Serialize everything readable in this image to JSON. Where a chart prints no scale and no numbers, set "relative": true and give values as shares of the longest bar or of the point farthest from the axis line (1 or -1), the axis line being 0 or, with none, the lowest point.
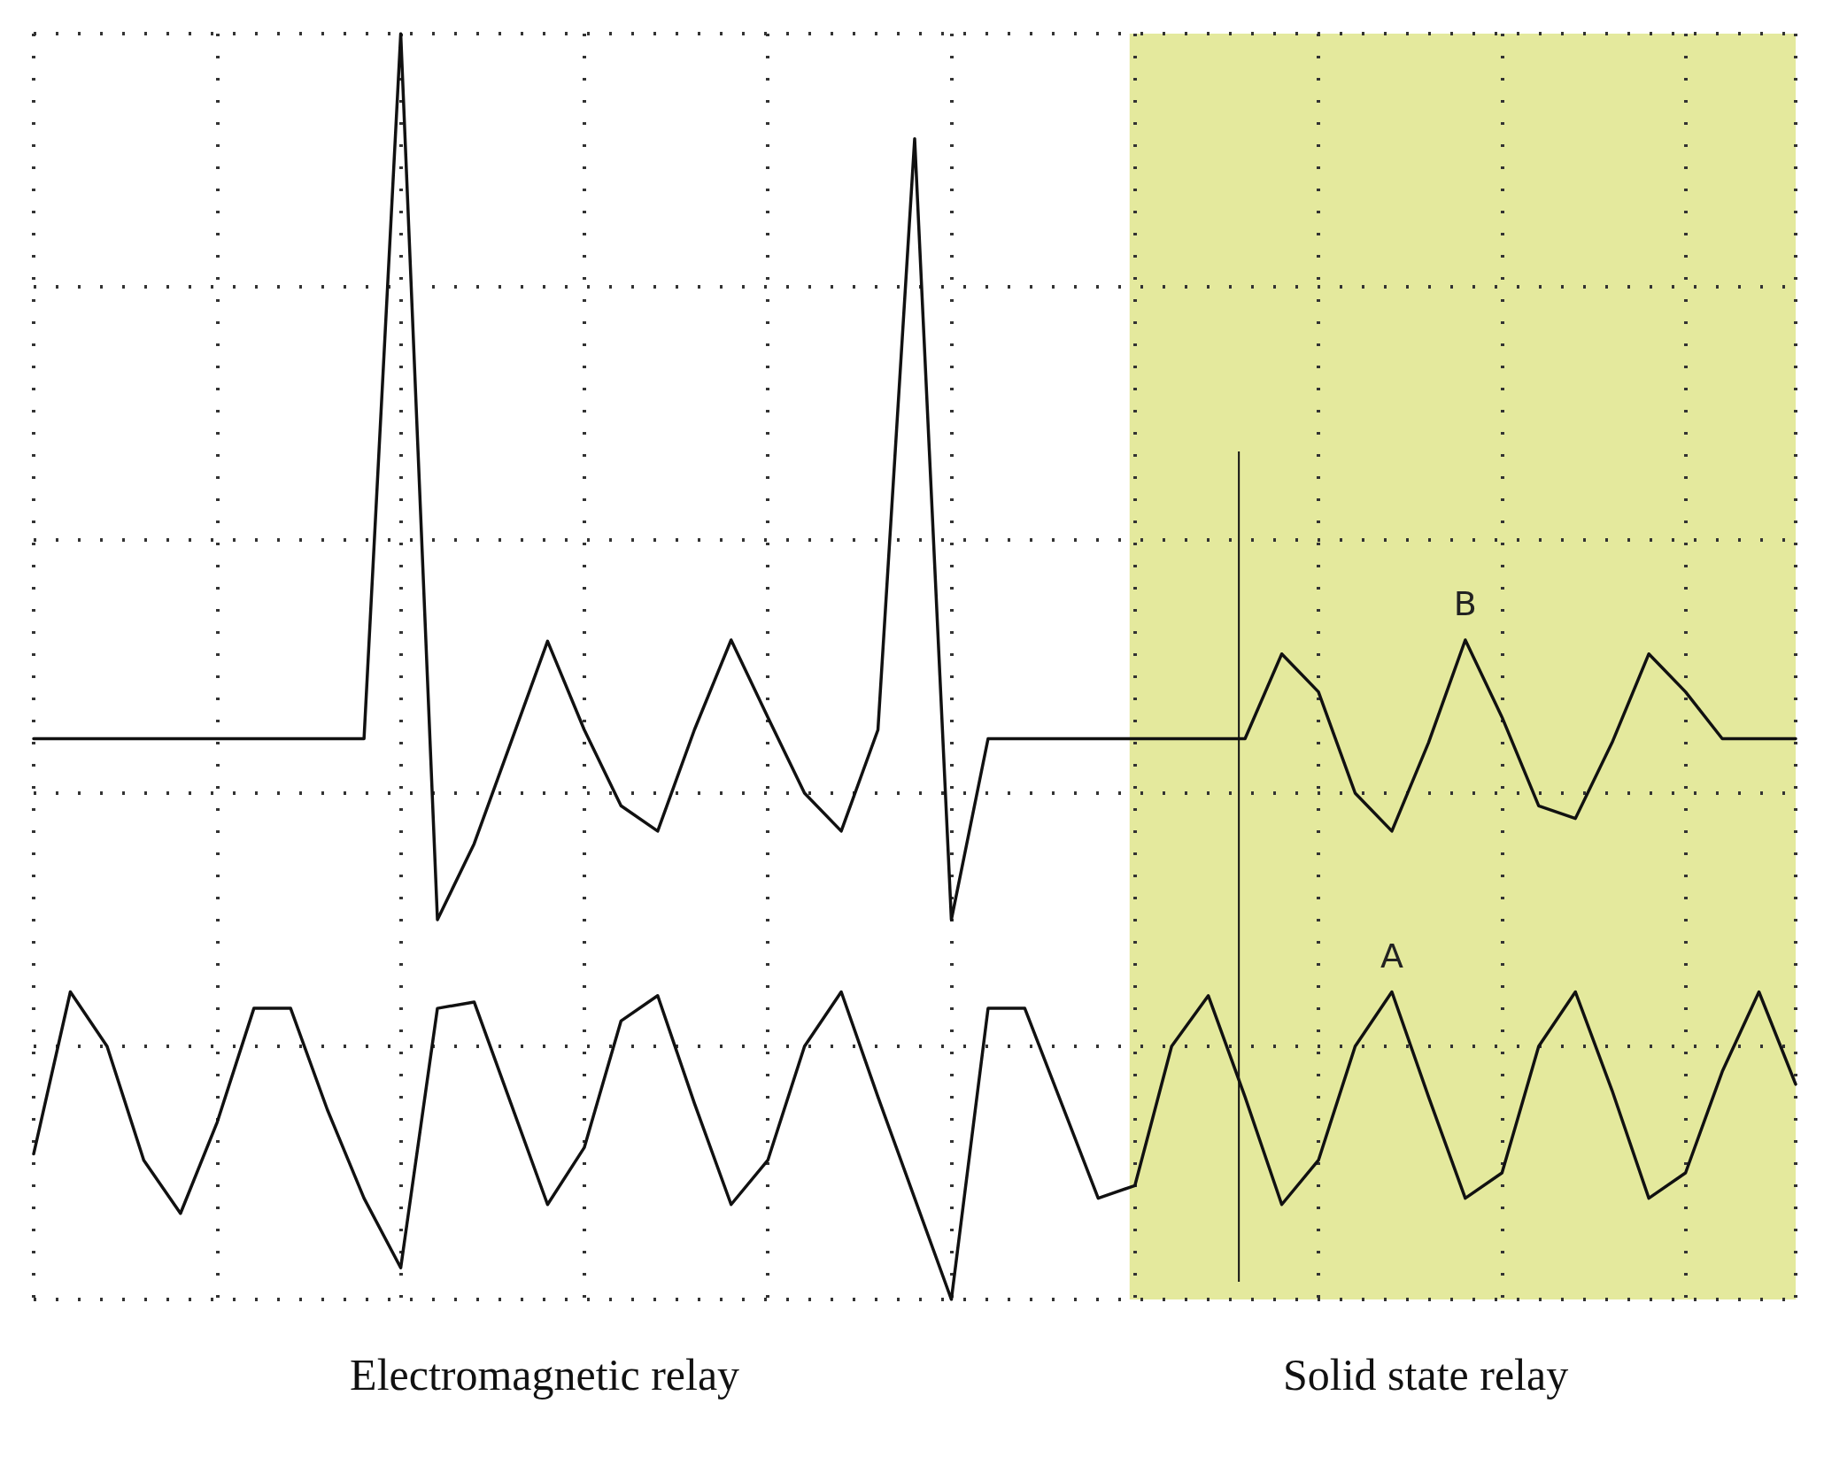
{
  "chart_data": {
    "type": "line",
    "relative": true,
    "grid": true,
    "marker": "none",
    "line_style": "solid",
    "categories": [
      null,
      null,
      null,
      null,
      null,
      null,
      null,
      null,
      null,
      null,
      null,
      null,
      null,
      null,
      null,
      null,
      null,
      null,
      null,
      null,
      null,
      null,
      null,
      null,
      null,
      null,
      null,
      null,
      null,
      null,
      null,
      null,
      null,
      null,
      null,
      null,
      null,
      null,
      null,
      null,
      null,
      null,
      null,
      null,
      null,
      null,
      null,
      null,
      null
    ],
    "series": [
      {
        "name": "B",
        "color": "#111111",
        "values": [
          0.443,
          0.443,
          0.443,
          0.443,
          0.443,
          0.443,
          0.443,
          0.443,
          0.443,
          0.443,
          1.0,
          0.3,
          0.36,
          0.44,
          0.52,
          0.45,
          0.39,
          0.37,
          0.45,
          0.521,
          0.46,
          0.4,
          0.37,
          0.45,
          0.917,
          0.3,
          0.443,
          0.443,
          0.443,
          0.443,
          0.443,
          0.443,
          0.443,
          0.443,
          0.51,
          0.48,
          0.4,
          0.37,
          0.44,
          0.521,
          0.46,
          0.39,
          0.38,
          0.44,
          0.51,
          0.48,
          0.443,
          0.443,
          0.443
        ]
      },
      {
        "name": "A",
        "color": "#111111",
        "values": [
          0.115,
          0.243,
          0.2,
          0.11,
          0.068,
          0.14,
          0.23,
          0.23,
          0.15,
          0.08,
          0.025,
          0.23,
          0.235,
          0.155,
          0.075,
          0.12,
          0.22,
          0.24,
          0.155,
          0.075,
          0.11,
          0.2,
          0.243,
          0.16,
          0.08,
          0,
          0.23,
          0.23,
          0.155,
          0.08,
          0.09,
          0.2,
          0.24,
          0.16,
          0.075,
          0.11,
          0.2,
          0.243,
          0.16,
          0.08,
          0.1,
          0.2,
          0.243,
          0.165,
          0.08,
          0.1,
          0.18,
          0.243,
          0.17
        ]
      }
    ],
    "annotations": [
      "Electromagnetic relay",
      "Solid state relay"
    ]
  }
}
